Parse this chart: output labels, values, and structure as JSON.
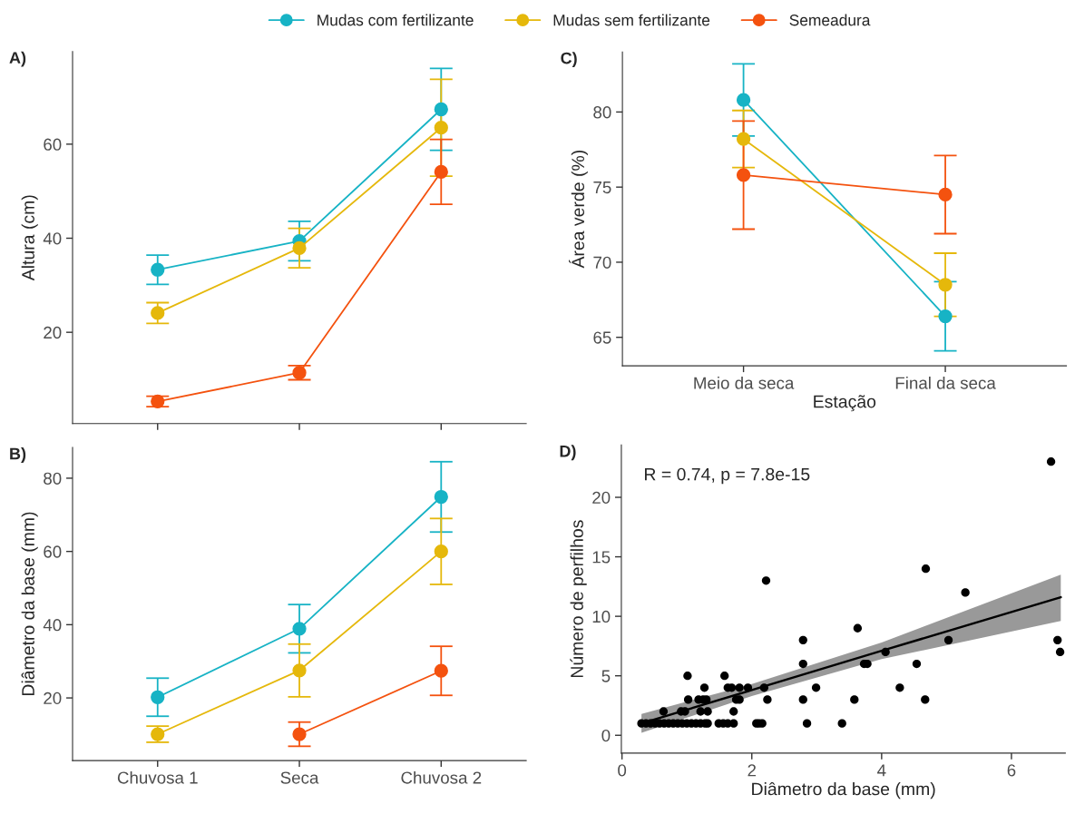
{
  "chart_data": [
    {
      "type": "line",
      "title": "A)",
      "ylabel": "Altura (cm)",
      "categories": [
        null,
        null,
        null
      ],
      "ylim": [
        0.6,
        79.7
      ],
      "yticks": [
        20,
        40,
        60
      ],
      "tick_labels": "y",
      "marker": "circle",
      "legend": "top",
      "grid": false,
      "series": [
        {
          "name": "Mudas com fertilizante",
          "color": "#17b3c5",
          "values": [
            33.3,
            39.4,
            67.4
          ],
          "errors": [
            3.1,
            4.2,
            8.7
          ]
        },
        {
          "name": "Mudas sem fertilizante",
          "color": "#e5b80b",
          "values": [
            24.1,
            37.9,
            63.5
          ],
          "errors": [
            2.2,
            4.2,
            10.3
          ]
        },
        {
          "name": "Semeadura",
          "color": "#f4520f",
          "values": [
            5.3,
            11.4,
            54.1
          ],
          "errors": [
            1.1,
            1.5,
            6.9
          ]
        }
      ]
    },
    {
      "type": "line",
      "title": "B)",
      "ylabel": "Diâmetro da base (mm)",
      "categories": [
        "Chuvosa 1",
        "Seca",
        "Chuvosa 2"
      ],
      "ylim": [
        2.9,
        88.4
      ],
      "yticks": [
        20,
        40,
        60,
        80
      ],
      "marker": "circle",
      "grid": false,
      "series": [
        {
          "color": "#17b3c5",
          "values": [
            20.2,
            38.9,
            74.9
          ],
          "errors": [
            5.2,
            6.6,
            9.6
          ]
        },
        {
          "color": "#e5b80b",
          "values": [
            10.1,
            27.5,
            60.0
          ],
          "errors": [
            2.2,
            7.2,
            9.0
          ]
        },
        {
          "color": "#f4520f",
          "values": [
            null,
            10.1,
            27.4
          ],
          "errors": [
            null,
            3.3,
            6.7
          ]
        }
      ]
    },
    {
      "type": "line",
      "title": "C)",
      "xlabel": "Estação",
      "ylabel": "Área verde (%)",
      "categories": [
        "Meio da seca",
        "Final da seca"
      ],
      "ylim": [
        63.1,
        84.0
      ],
      "yticks": [
        65,
        70,
        75,
        80
      ],
      "marker": "circle",
      "grid": false,
      "series": [
        {
          "color": "#17b3c5",
          "values": [
            80.8,
            66.4
          ],
          "errors": [
            2.4,
            2.3
          ]
        },
        {
          "color": "#e5b80b",
          "values": [
            78.2,
            68.5
          ],
          "errors": [
            1.9,
            2.1
          ]
        },
        {
          "color": "#f4520f",
          "values": [
            75.8,
            74.5
          ],
          "errors": [
            3.6,
            2.6
          ]
        }
      ]
    },
    {
      "type": "scatter",
      "title": "D)",
      "xlabel": "Diâmetro da base (mm)",
      "ylabel": "Número de perfilhos",
      "xlim": [
        -0.01,
        6.83
      ],
      "xticks": [
        0,
        2,
        4,
        6
      ],
      "ylim": [
        -1.5,
        24.4
      ],
      "yticks": [
        0,
        5,
        10,
        15,
        20
      ],
      "marker": "circle",
      "grid": false,
      "annotations": [
        "R = 0.74, p = 7.8e-15"
      ],
      "series": [
        {
          "color": "#000000",
          "x": [
            0.3,
            0.37,
            0.44,
            0.51,
            0.58,
            0.65,
            0.72,
            0.79,
            0.86,
            0.93,
            1.0,
            1.07,
            1.14,
            1.21,
            1.28,
            1.32,
            1.49,
            1.56,
            1.63,
            1.72,
            2.07,
            2.11,
            2.16,
            2.85,
            3.39,
            0.64,
            0.91,
            0.97,
            1.21,
            1.32,
            1.72,
            1.02,
            1.18,
            1.25,
            1.3,
            1.76,
            1.81,
            2.24,
            2.79,
            3.58,
            4.67,
            1.27,
            1.63,
            1.69,
            1.81,
            1.94,
            2.19,
            2.99,
            4.28,
            1.01,
            1.58,
            2.79,
            3.73,
            3.78,
            4.54,
            4.06,
            6.75,
            2.79,
            5.03,
            6.71,
            3.63,
            5.29,
            2.22,
            4.68,
            6.61
          ],
          "values": [
            1,
            1,
            1,
            1,
            1,
            1,
            1,
            1,
            1,
            1,
            1,
            1,
            1,
            1,
            1,
            1,
            1,
            1,
            1,
            1,
            1,
            1,
            1,
            1,
            1,
            2,
            2,
            2,
            2,
            2,
            2,
            3,
            3,
            3,
            3,
            3,
            3,
            3,
            3,
            3,
            3,
            4,
            4,
            4,
            4,
            4,
            4,
            4,
            4,
            5,
            5,
            6,
            6,
            6,
            6,
            7,
            7,
            8,
            8,
            8,
            9,
            12,
            13,
            14,
            23
          ]
        },
        {
          "type": "line",
          "marker": "none",
          "color": "#000000",
          "x": [
            0.3,
            2,
            4,
            6.76
          ],
          "values": [
            1.0,
            3.8,
            7.1,
            11.6
          ],
          "lower": [
            0.2,
            3.3,
            6.4,
            9.6
          ],
          "upper": [
            1.8,
            4.3,
            7.8,
            13.5
          ]
        }
      ]
    }
  ]
}
